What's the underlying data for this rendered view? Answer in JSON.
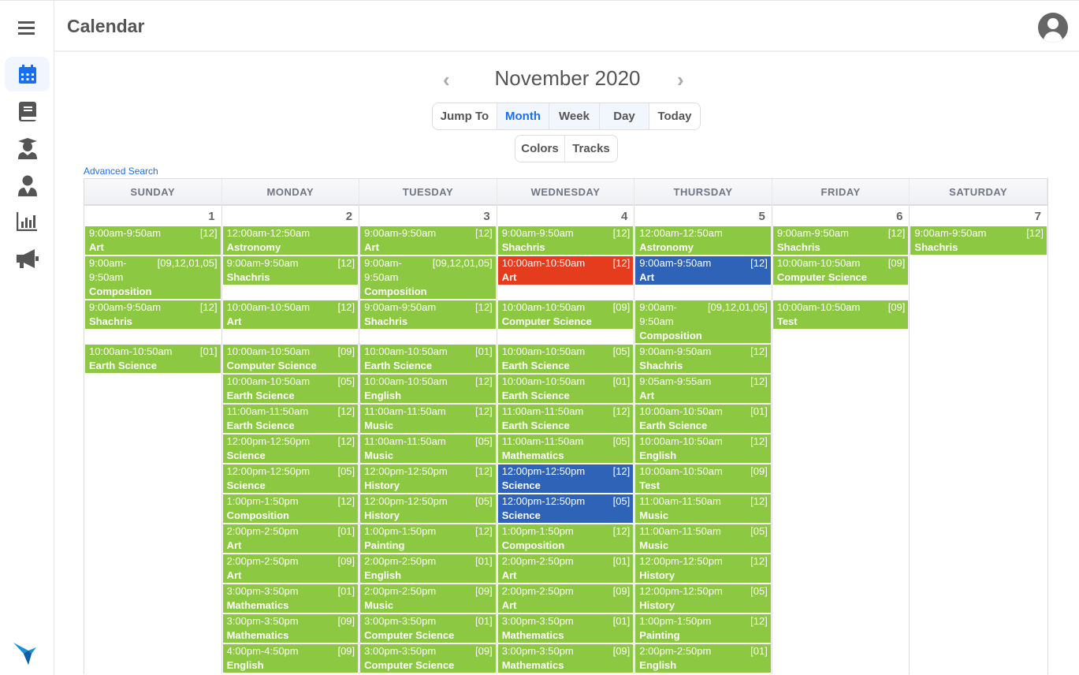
{
  "header": {
    "title": "Calendar"
  },
  "sidebar": {
    "items": [
      {
        "icon": "calendar-icon",
        "active": true
      },
      {
        "icon": "book-icon"
      },
      {
        "icon": "graduate-icon"
      },
      {
        "icon": "teacher-icon"
      },
      {
        "icon": "chart-icon"
      },
      {
        "icon": "megaphone-icon"
      }
    ]
  },
  "calendar": {
    "month_label": "November 2020",
    "prev": "‹",
    "next": "›",
    "view_buttons": [
      "Jump To",
      "Month",
      "Week",
      "Day",
      "Today"
    ],
    "selected_view": "Month",
    "extra_buttons": [
      "Colors",
      "Tracks"
    ],
    "advanced_search": "Advanced Search",
    "weekdays": [
      "SUNDAY",
      "MONDAY",
      "TUESDAY",
      "WEDNESDAY",
      "THURSDAY",
      "FRIDAY",
      "SATURDAY"
    ],
    "dates": [
      "1",
      "2",
      "3",
      "4",
      "5",
      "6",
      "7"
    ],
    "colors": {
      "green": "#8dc843",
      "red": "#e63c1e",
      "blue": "#2e63b8"
    },
    "rows": [
      [
        {
          "time": "9:00am-9:50am",
          "code": "[12]",
          "title": "Art"
        },
        {
          "time": "12:00am-12:50am",
          "code": "",
          "title": "Astronomy"
        },
        {
          "time": "9:00am-9:50am",
          "code": "[12]",
          "title": "Art"
        },
        {
          "time": "9:00am-9:50am",
          "code": "[12]",
          "title": "Shachris"
        },
        {
          "time": "12:00am-12:50am",
          "code": "",
          "title": "Astronomy"
        },
        {
          "time": "9:00am-9:50am",
          "code": "[12]",
          "title": "Shachris"
        },
        {
          "time": "9:00am-9:50am",
          "code": "[12]",
          "title": "Shachris"
        }
      ],
      [
        {
          "time": "9:00am-9:50am",
          "code": "[09,12,01,05]",
          "title": "Composition",
          "lines": 3
        },
        {
          "time": "9:00am-9:50am",
          "code": "[12]",
          "title": "Shachris"
        },
        {
          "time": "9:00am-9:50am",
          "code": "[09,12,01,05]",
          "title": "Composition",
          "lines": 3
        },
        {
          "time": "10:00am-10:50am",
          "code": "[12]",
          "title": "Art",
          "color": "red"
        },
        {
          "time": "9:00am-9:50am",
          "code": "[12]",
          "title": "Art",
          "color": "blue"
        },
        {
          "time": "10:00am-10:50am",
          "code": "[09]",
          "title": "Computer Science"
        },
        null
      ],
      [
        {
          "time": "9:00am-9:50am",
          "code": "[12]",
          "title": "Shachris"
        },
        {
          "time": "10:00am-10:50am",
          "code": "[12]",
          "title": "Art"
        },
        {
          "time": "9:00am-9:50am",
          "code": "[12]",
          "title": "Shachris"
        },
        {
          "time": "10:00am-10:50am",
          "code": "[09]",
          "title": "Computer Science"
        },
        {
          "time": "9:00am-9:50am",
          "code": "[09,12,01,05]",
          "title": "Composition",
          "lines": 3
        },
        {
          "time": "10:00am-10:50am",
          "code": "[09]",
          "title": "Test"
        },
        null
      ],
      [
        {
          "time": "10:00am-10:50am",
          "code": "[01]",
          "title": "Earth Science"
        },
        {
          "time": "10:00am-10:50am",
          "code": "[09]",
          "title": "Computer Science"
        },
        {
          "time": "10:00am-10:50am",
          "code": "[01]",
          "title": "Earth Science"
        },
        {
          "time": "10:00am-10:50am",
          "code": "[05]",
          "title": "Earth Science"
        },
        {
          "time": "9:00am-9:50am",
          "code": "[12]",
          "title": "Shachris"
        },
        null,
        null
      ],
      [
        null,
        {
          "time": "10:00am-10:50am",
          "code": "[05]",
          "title": "Earth Science"
        },
        {
          "time": "10:00am-10:50am",
          "code": "[12]",
          "title": "English"
        },
        {
          "time": "10:00am-10:50am",
          "code": "[01]",
          "title": "Earth Science"
        },
        {
          "time": "9:05am-9:55am",
          "code": "[12]",
          "title": "Art"
        },
        null,
        null
      ],
      [
        null,
        {
          "time": "11:00am-11:50am",
          "code": "[12]",
          "title": "Earth Science"
        },
        {
          "time": "11:00am-11:50am",
          "code": "[12]",
          "title": "Music"
        },
        {
          "time": "11:00am-11:50am",
          "code": "[12]",
          "title": "Earth Science"
        },
        {
          "time": "10:00am-10:50am",
          "code": "[01]",
          "title": "Earth Science"
        },
        null,
        null
      ],
      [
        null,
        {
          "time": "12:00pm-12:50pm",
          "code": "[12]",
          "title": "Science"
        },
        {
          "time": "11:00am-11:50am",
          "code": "[05]",
          "title": "Music"
        },
        {
          "time": "11:00am-11:50am",
          "code": "[05]",
          "title": "Mathematics"
        },
        {
          "time": "10:00am-10:50am",
          "code": "[12]",
          "title": "English"
        },
        null,
        null
      ],
      [
        null,
        {
          "time": "12:00pm-12:50pm",
          "code": "[05]",
          "title": "Science"
        },
        {
          "time": "12:00pm-12:50pm",
          "code": "[12]",
          "title": "History"
        },
        {
          "time": "12:00pm-12:50pm",
          "code": "[12]",
          "title": "Science",
          "color": "blue"
        },
        {
          "time": "10:00am-10:50am",
          "code": "[09]",
          "title": "Test"
        },
        null,
        null
      ],
      [
        null,
        {
          "time": "1:00pm-1:50pm",
          "code": "[12]",
          "title": "Composition"
        },
        {
          "time": "12:00pm-12:50pm",
          "code": "[05]",
          "title": "History"
        },
        {
          "time": "12:00pm-12:50pm",
          "code": "[05]",
          "title": "Science",
          "color": "blue"
        },
        {
          "time": "11:00am-11:50am",
          "code": "[12]",
          "title": "Music"
        },
        null,
        null
      ],
      [
        null,
        {
          "time": "2:00pm-2:50pm",
          "code": "[01]",
          "title": "Art"
        },
        {
          "time": "1:00pm-1:50pm",
          "code": "[12]",
          "title": "Painting"
        },
        {
          "time": "1:00pm-1:50pm",
          "code": "[12]",
          "title": "Composition"
        },
        {
          "time": "11:00am-11:50am",
          "code": "[05]",
          "title": "Music"
        },
        null,
        null
      ],
      [
        null,
        {
          "time": "2:00pm-2:50pm",
          "code": "[09]",
          "title": "Art"
        },
        {
          "time": "2:00pm-2:50pm",
          "code": "[01]",
          "title": "English"
        },
        {
          "time": "2:00pm-2:50pm",
          "code": "[01]",
          "title": "Art"
        },
        {
          "time": "12:00pm-12:50pm",
          "code": "[12]",
          "title": "History"
        },
        null,
        null
      ],
      [
        null,
        {
          "time": "3:00pm-3:50pm",
          "code": "[01]",
          "title": "Mathematics"
        },
        {
          "time": "2:00pm-2:50pm",
          "code": "[09]",
          "title": "Music"
        },
        {
          "time": "2:00pm-2:50pm",
          "code": "[09]",
          "title": "Art"
        },
        {
          "time": "12:00pm-12:50pm",
          "code": "[05]",
          "title": "History"
        },
        null,
        null
      ],
      [
        null,
        {
          "time": "3:00pm-3:50pm",
          "code": "[09]",
          "title": "Mathematics"
        },
        {
          "time": "3:00pm-3:50pm",
          "code": "[01]",
          "title": "Computer Science"
        },
        {
          "time": "3:00pm-3:50pm",
          "code": "[01]",
          "title": "Mathematics"
        },
        {
          "time": "1:00pm-1:50pm",
          "code": "[12]",
          "title": "Painting"
        },
        null,
        null
      ],
      [
        null,
        {
          "time": "4:00pm-4:50pm",
          "code": "[09]",
          "title": "English"
        },
        {
          "time": "3:00pm-3:50pm",
          "code": "[09]",
          "title": "Computer Science"
        },
        {
          "time": "3:00pm-3:50pm",
          "code": "[09]",
          "title": "Mathematics"
        },
        {
          "time": "2:00pm-2:50pm",
          "code": "[01]",
          "title": "English"
        },
        null,
        null
      ]
    ]
  }
}
